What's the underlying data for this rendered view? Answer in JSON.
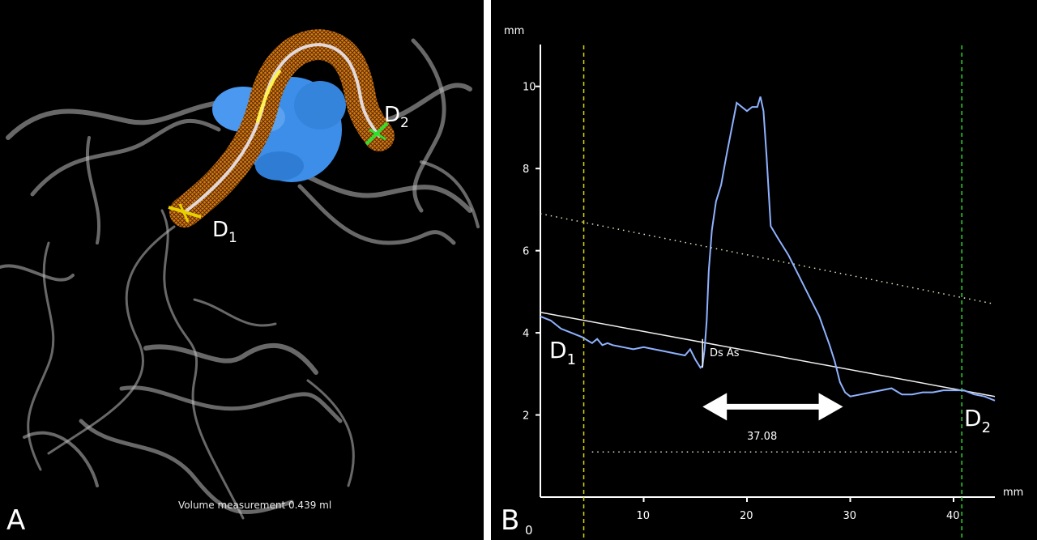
{
  "panel_a": {
    "panel_letter": "A",
    "marker_d1": "D",
    "marker_d1_sub": "1",
    "marker_d2": "D",
    "marker_d2_sub": "2",
    "volume_text": "Volume measurement 0.439 ml",
    "colors": {
      "vessels": "#cfcfcf",
      "tube": "#d9801e",
      "aneurysm": "#3d8ee8",
      "centerline": "#eef0ff",
      "d1_marker": "#e8d000",
      "d2_marker": "#2ee02e"
    }
  },
  "panel_b": {
    "panel_letter": "B",
    "origin_label": "0",
    "marker_d1": "D",
    "marker_d1_sub": "1",
    "marker_d2": "D",
    "marker_d2_sub": "2",
    "ds_as_label": "Ds As",
    "length_label": "37.08"
  },
  "chart_data": {
    "type": "line",
    "xunit": "mm",
    "yunit": "mm",
    "xlim": [
      0,
      44
    ],
    "ylim": [
      0,
      11
    ],
    "xticks": [
      10,
      20,
      30,
      40
    ],
    "yticks": [
      2,
      4,
      6,
      8,
      10
    ],
    "grid": false,
    "series": [
      {
        "color": "#8fb2ff",
        "x": [
          0,
          1,
          2,
          3,
          4,
          5,
          5.5,
          6,
          6.5,
          7,
          8,
          9,
          10,
          11,
          12,
          13,
          14,
          14.5,
          15,
          15.5,
          15.7,
          15.9,
          16.1,
          16.3,
          16.6,
          17,
          17.5,
          18,
          19,
          20,
          20.5,
          21,
          21.3,
          21.6,
          21.9,
          22.3,
          23,
          24,
          25,
          26,
          27,
          28,
          28.5,
          29,
          29.5,
          30,
          31,
          32,
          33,
          34,
          35,
          36,
          37,
          38,
          39,
          40,
          41,
          42,
          43,
          44
        ],
        "y": [
          4.4,
          4.3,
          4.1,
          4.0,
          3.9,
          3.75,
          3.85,
          3.7,
          3.75,
          3.7,
          3.65,
          3.6,
          3.65,
          3.6,
          3.55,
          3.5,
          3.45,
          3.6,
          3.35,
          3.15,
          3.2,
          3.6,
          4.3,
          5.5,
          6.5,
          7.2,
          7.6,
          8.3,
          9.6,
          9.4,
          9.5,
          9.5,
          9.75,
          9.4,
          8.3,
          6.6,
          6.3,
          5.9,
          5.4,
          4.9,
          4.4,
          3.7,
          3.3,
          2.8,
          2.55,
          2.45,
          2.5,
          2.55,
          2.6,
          2.65,
          2.5,
          2.5,
          2.55,
          2.55,
          2.6,
          2.6,
          2.6,
          2.5,
          2.45,
          2.35
        ]
      }
    ],
    "reference_lines": [
      {
        "style": "solid",
        "color": "#f0f0f0",
        "x": [
          0,
          44
        ],
        "y": [
          4.5,
          2.45
        ]
      },
      {
        "style": "dotted",
        "color": "#e8e8c0",
        "x": [
          0,
          44
        ],
        "y": [
          6.9,
          4.7
        ]
      },
      {
        "style": "dotted",
        "color": "#e8e8c0",
        "x": [
          5,
          40.5
        ],
        "y": [
          1.1,
          1.1
        ]
      }
    ],
    "vertical_markers": [
      {
        "x": 4.2,
        "color": "#d8d800",
        "style": "dashed"
      },
      {
        "x": 40.8,
        "color": "#2ed02e",
        "style": "dashed"
      }
    ],
    "arrow": {
      "x_start": 15.7,
      "x_end": 29.3,
      "y": 2.2,
      "color": "#ffffff"
    },
    "ds_as_segment": {
      "x": 15.7,
      "y_low": 3.15,
      "y_high": 3.85
    }
  }
}
